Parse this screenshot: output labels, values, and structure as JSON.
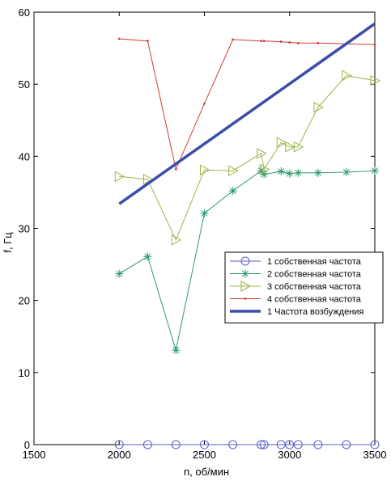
{
  "chart_data": {
    "type": "line",
    "xlabel": "n, об/мин",
    "ylabel": "f, Гц",
    "xlim": [
      1500,
      3500
    ],
    "ylim": [
      0,
      60
    ],
    "x_ticks": [
      1500,
      2000,
      2500,
      3000,
      3500
    ],
    "y_ticks": [
      0,
      10,
      20,
      30,
      40,
      50,
      60
    ],
    "grid": false,
    "legend_position": "lower-right",
    "series": [
      {
        "name": "1 собственная частота",
        "color": "#5b5fc7",
        "marker": "circle",
        "x": [
          2000,
          2167,
          2333,
          2500,
          2667,
          2833,
          2850,
          2950,
          3000,
          3050,
          3167,
          3333,
          3500
        ],
        "y": [
          0,
          0,
          0,
          0,
          0,
          0,
          0,
          0,
          0,
          0,
          0,
          0,
          0
        ]
      },
      {
        "name": "2 собственная частота",
        "color": "#2e9a6e",
        "marker": "star",
        "x": [
          2000,
          2167,
          2333,
          2500,
          2667,
          2833,
          2850,
          2950,
          3000,
          3050,
          3167,
          3333,
          3500
        ],
        "y": [
          23.7,
          26.1,
          13.1,
          32.1,
          35.2,
          38.0,
          37.5,
          37.9,
          37.6,
          37.7,
          37.7,
          37.8,
          38.0
        ]
      },
      {
        "name": "3 собственная частота",
        "color": "#9bb548",
        "marker": "triangle-right",
        "x": [
          2000,
          2167,
          2333,
          2500,
          2667,
          2833,
          2850,
          2950,
          3000,
          3050,
          3167,
          3333,
          3500
        ],
        "y": [
          37.2,
          36.8,
          28.4,
          38.1,
          38.0,
          40.4,
          38.2,
          41.9,
          41.3,
          41.3,
          46.8,
          51.2,
          50.5
        ]
      },
      {
        "name": "4 собственная частота",
        "color": "#d23a3a",
        "marker": "dot",
        "x": [
          2000,
          2167,
          2333,
          2500,
          2667,
          2833,
          2850,
          2950,
          3000,
          3050,
          3167,
          3333,
          3500
        ],
        "y": [
          56.3,
          56.0,
          38.2,
          47.3,
          56.2,
          56.0,
          56.0,
          55.9,
          55.8,
          55.7,
          55.7,
          55.6,
          55.5
        ]
      },
      {
        "name": "1 Частота возбуждения",
        "color": "#3a4ea8",
        "marker": "none",
        "thick": true,
        "x": [
          2000,
          3500
        ],
        "y": [
          33.4,
          58.4
        ]
      }
    ]
  }
}
